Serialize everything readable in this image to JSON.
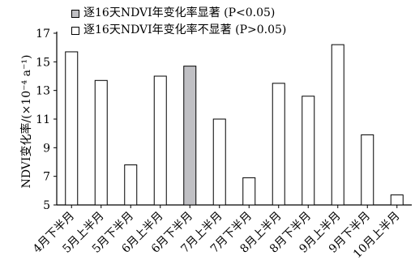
{
  "chart_data": {
    "type": "bar",
    "categories": [
      "4月下半月",
      "5月上半月",
      "5月下半月",
      "6月上半月",
      "6月下半月",
      "7月上半月",
      "7月下半月",
      "8月上半月",
      "8月下半月",
      "9月上半月",
      "9月下半月",
      "10月上半月"
    ],
    "values": [
      15.7,
      13.7,
      7.8,
      14.0,
      14.7,
      11.0,
      6.9,
      13.5,
      12.6,
      16.2,
      9.9,
      5.7
    ],
    "significant": [
      false,
      false,
      false,
      false,
      true,
      false,
      false,
      false,
      false,
      false,
      false,
      false
    ],
    "ylim": [
      5,
      17
    ],
    "yticks": [
      5,
      7,
      9,
      11,
      13,
      15,
      17
    ],
    "ylabel": "NDVI变化率/(×10⁻⁴ a⁻¹)",
    "legend": [
      {
        "label": "逐16天NDVI年变化率显著 (P<0.05)",
        "color": "#c0c0c4"
      },
      {
        "label": "逐16天NDVI年变化率不显著 (P>0.05)",
        "color": "#ffffff"
      }
    ],
    "grid": false,
    "legend_position": "top"
  }
}
